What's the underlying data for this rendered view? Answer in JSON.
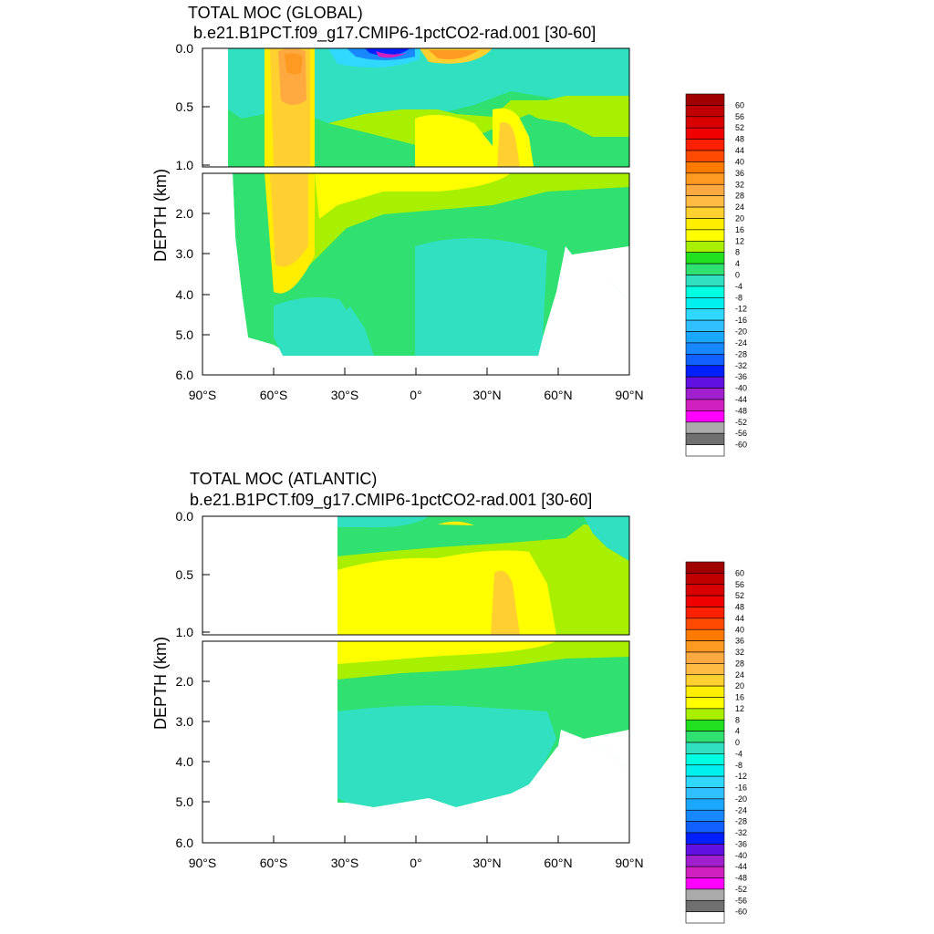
{
  "chart_data": [
    {
      "type": "heatmap",
      "title": "TOTAL MOC (GLOBAL)",
      "subtitle": "b.e21.B1PCT.f09_g17.CMIP6-1pctCO2-rad.001 [30-60]",
      "xlabel": "",
      "ylabel": "DEPTH (km)",
      "x_tick_labels": [
        "90°S",
        "60°S",
        "30°S",
        "0°",
        "30°N",
        "60°N",
        "90°N"
      ],
      "y_tick_labels_upper": [
        "0.0",
        "0.5",
        "1.0"
      ],
      "y_tick_labels_lower": [
        "2.0",
        "3.0",
        "4.0",
        "5.0",
        "6.0"
      ],
      "xlim": [
        -90,
        90
      ],
      "ylim": [
        6.0,
        0.0
      ],
      "fields": [
        {
          "lat": -50,
          "depth": 1.6,
          "value": 20
        },
        {
          "lat": -52,
          "depth": 0.2,
          "value": 28
        },
        {
          "lat": -12,
          "depth": 0.0,
          "value": -48
        },
        {
          "lat": 12,
          "depth": 0.0,
          "value": 28
        },
        {
          "lat": 10,
          "depth": 0.8,
          "value": 14
        },
        {
          "lat": 38,
          "depth": 0.9,
          "value": 18
        },
        {
          "lat": 20,
          "depth": 3.8,
          "value": -2
        },
        {
          "lat": -25,
          "depth": 4.5,
          "value": -2
        }
      ]
    },
    {
      "type": "heatmap",
      "title": "TOTAL MOC (ATLANTIC)",
      "subtitle": "b.e21.B1PCT.f09_g17.CMIP6-1pctCO2-rad.001 [30-60]",
      "xlabel": "",
      "ylabel": "DEPTH (km)",
      "x_tick_labels": [
        "90°S",
        "60°S",
        "30°S",
        "0°",
        "30°N",
        "60°N",
        "90°N"
      ],
      "y_tick_labels_upper": [
        "0.0",
        "0.5",
        "1.0"
      ],
      "y_tick_labels_lower": [
        "2.0",
        "3.0",
        "4.0",
        "5.0",
        "6.0"
      ],
      "xlim": [
        -90,
        90
      ],
      "ylim": [
        6.0,
        0.0
      ],
      "fields": [
        {
          "lat": 10,
          "depth": 0.8,
          "value": 14
        },
        {
          "lat": 35,
          "depth": 0.9,
          "value": 18
        },
        {
          "lat": 13,
          "depth": 0.1,
          "value": 20
        },
        {
          "lat": -5,
          "depth": 0.0,
          "value": -2
        },
        {
          "lat": 20,
          "depth": 3.8,
          "value": -2
        }
      ]
    }
  ],
  "colorbar": {
    "labels": [
      "60",
      "56",
      "52",
      "48",
      "44",
      "40",
      "36",
      "32",
      "28",
      "24",
      "20",
      "16",
      "12",
      "8",
      "4",
      "0",
      "-4",
      "-8",
      "-12",
      "-16",
      "-20",
      "-24",
      "-28",
      "-32",
      "-36",
      "-40",
      "-44",
      "-48",
      "-52",
      "-56",
      "-60"
    ],
    "colors": [
      "#a00000",
      "#c00000",
      "#d80000",
      "#f00000",
      "#ff2000",
      "#ff4a00",
      "#ff7a00",
      "#ff9a20",
      "#ffaa40",
      "#ffbb44",
      "#ffd030",
      "#ffee00",
      "#ffff00",
      "#a8f000",
      "#20e020",
      "#30e070",
      "#30e0c0",
      "#00ffe0",
      "#00f0f0",
      "#30d8ff",
      "#30c0ff",
      "#1aa8ff",
      "#1888ff",
      "#1060ff",
      "#0020ff",
      "#6010e0",
      "#a020d0",
      "#d020c0",
      "#ff00ff",
      "#aaaaaa",
      "#707070",
      "#ffffff"
    ]
  }
}
